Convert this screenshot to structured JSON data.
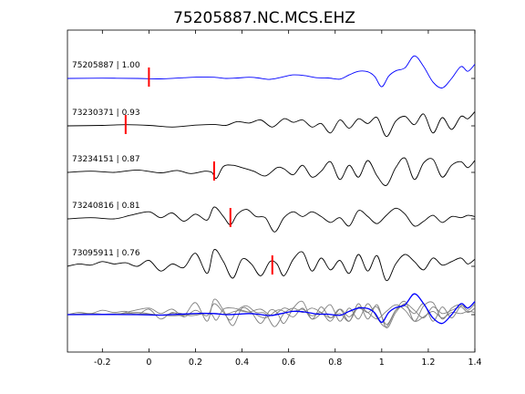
{
  "chart_data": {
    "type": "line",
    "title": "75205887.NC.MCS.EHZ",
    "xlabel": "",
    "ylabel": "",
    "xlim": [
      -0.35,
      1.4
    ],
    "xticks": [
      -0.2,
      0,
      0.2,
      0.4,
      0.6,
      0.8,
      1,
      1.2,
      1.4
    ],
    "xtick_labels": [
      "-0.2",
      "0",
      "0.2",
      "0.4",
      "0.6",
      "0.8",
      "1",
      "1.2",
      "1.4"
    ],
    "grid": false,
    "colors": {
      "master": "#0000ff",
      "trace": "#000000",
      "pick": "#ff0000",
      "stack": "#808080"
    },
    "traces": [
      {
        "label": "75205887 | 1.00",
        "pick_time": 0.0,
        "color": "#0000ff",
        "x": [
          -0.35,
          -0.2,
          -0.05,
          0.05,
          0.15,
          0.22,
          0.28,
          0.33,
          0.38,
          0.43,
          0.47,
          0.52,
          0.57,
          0.62,
          0.67,
          0.72,
          0.77,
          0.82,
          0.86,
          0.9,
          0.94,
          0.97,
          1.0,
          1.03,
          1.06,
          1.1,
          1.14,
          1.18,
          1.22,
          1.26,
          1.3,
          1.34,
          1.37,
          1.4
        ],
        "y": [
          0.0,
          0.01,
          0.0,
          -0.02,
          0.03,
          0.06,
          0.05,
          0.0,
          0.02,
          0.05,
          0.02,
          -0.04,
          0.05,
          0.15,
          0.12,
          0.03,
          0.02,
          -0.03,
          0.15,
          0.3,
          0.28,
          0.08,
          -0.35,
          0.1,
          0.32,
          0.45,
          0.95,
          0.5,
          -0.15,
          -0.4,
          0.0,
          0.5,
          0.3,
          0.6
        ]
      },
      {
        "label": "73230371 | 0.93",
        "pick_time": -0.1,
        "color": "#000000",
        "x": [
          -0.35,
          -0.2,
          -0.1,
          0.0,
          0.1,
          0.2,
          0.28,
          0.33,
          0.38,
          0.43,
          0.48,
          0.53,
          0.58,
          0.62,
          0.66,
          0.7,
          0.74,
          0.78,
          0.82,
          0.86,
          0.9,
          0.94,
          0.98,
          1.02,
          1.06,
          1.1,
          1.14,
          1.18,
          1.22,
          1.26,
          1.3,
          1.34,
          1.37,
          1.4
        ],
        "y": [
          0.0,
          0.02,
          0.05,
          0.02,
          -0.05,
          0.03,
          0.06,
          0.02,
          0.18,
          0.12,
          0.25,
          -0.05,
          0.3,
          0.15,
          0.25,
          -0.05,
          0.1,
          -0.3,
          0.25,
          -0.1,
          0.3,
          0.1,
          0.35,
          -0.45,
          0.2,
          0.4,
          0.05,
          0.5,
          -0.3,
          0.35,
          -0.15,
          0.4,
          0.3,
          0.6
        ]
      },
      {
        "label": "73234151 | 0.87",
        "pick_time": 0.28,
        "color": "#000000",
        "x": [
          -0.35,
          -0.25,
          -0.15,
          -0.05,
          0.05,
          0.12,
          0.18,
          0.24,
          0.27,
          0.29,
          0.32,
          0.36,
          0.4,
          0.45,
          0.5,
          0.55,
          0.58,
          0.62,
          0.66,
          0.7,
          0.74,
          0.78,
          0.82,
          0.86,
          0.9,
          0.94,
          0.98,
          1.02,
          1.06,
          1.1,
          1.14,
          1.18,
          1.22,
          1.26,
          1.3,
          1.34,
          1.37,
          1.4
        ],
        "y": [
          0.0,
          0.05,
          0.0,
          0.1,
          -0.02,
          0.08,
          -0.05,
          0.05,
          0.0,
          -0.25,
          0.25,
          0.3,
          0.2,
          0.05,
          -0.15,
          0.2,
          0.15,
          -0.1,
          0.3,
          -0.2,
          0.05,
          0.45,
          -0.3,
          0.3,
          -0.2,
          0.5,
          -0.15,
          -0.55,
          0.2,
          0.6,
          -0.3,
          0.4,
          0.55,
          -0.2,
          0.3,
          0.45,
          0.2,
          0.5
        ]
      },
      {
        "label": "73240816 | 0.81",
        "pick_time": 0.35,
        "color": "#000000",
        "x": [
          -0.35,
          -0.25,
          -0.15,
          -0.08,
          0.0,
          0.05,
          0.1,
          0.15,
          0.2,
          0.25,
          0.28,
          0.32,
          0.35,
          0.38,
          0.42,
          0.46,
          0.5,
          0.54,
          0.58,
          0.62,
          0.66,
          0.7,
          0.74,
          0.78,
          0.82,
          0.86,
          0.9,
          0.94,
          0.98,
          1.02,
          1.06,
          1.1,
          1.14,
          1.18,
          1.22,
          1.26,
          1.3,
          1.34,
          1.37,
          1.4
        ],
        "y": [
          0.0,
          0.05,
          0.0,
          0.15,
          0.3,
          0.05,
          0.25,
          -0.1,
          0.2,
          -0.05,
          0.5,
          0.1,
          -0.25,
          0.2,
          0.4,
          0.1,
          0.05,
          -0.55,
          0.05,
          0.3,
          0.1,
          0.3,
          0.1,
          -0.15,
          0.05,
          -0.3,
          0.35,
          0.1,
          -0.2,
          0.15,
          0.45,
          0.2,
          -0.3,
          -0.1,
          0.15,
          -0.15,
          0.1,
          0.05,
          0.15,
          0.1
        ]
      },
      {
        "label": "73095911 | 0.76",
        "pick_time": 0.53,
        "color": "#000000",
        "x": [
          -0.35,
          -0.3,
          -0.25,
          -0.2,
          -0.15,
          -0.1,
          -0.05,
          0.0,
          0.05,
          0.1,
          0.15,
          0.2,
          0.25,
          0.28,
          0.32,
          0.36,
          0.4,
          0.44,
          0.48,
          0.52,
          0.55,
          0.58,
          0.62,
          0.66,
          0.7,
          0.74,
          0.78,
          0.82,
          0.86,
          0.9,
          0.94,
          0.98,
          1.02,
          1.06,
          1.1,
          1.14,
          1.18,
          1.22,
          1.26,
          1.3,
          1.34,
          1.37,
          1.4
        ],
        "y": [
          0.0,
          0.1,
          0.05,
          0.2,
          0.1,
          0.15,
          0.0,
          0.25,
          -0.2,
          0.1,
          -0.05,
          0.55,
          -0.3,
          0.7,
          0.2,
          -0.5,
          0.3,
          0.1,
          -0.4,
          0.2,
          0.1,
          -0.4,
          0.3,
          0.6,
          -0.2,
          0.35,
          -0.15,
          0.25,
          -0.3,
          0.5,
          -0.2,
          0.45,
          -0.6,
          0.1,
          0.5,
          0.2,
          -0.15,
          0.35,
          0.05,
          0.2,
          0.35,
          0.1,
          0.3
        ]
      }
    ]
  }
}
